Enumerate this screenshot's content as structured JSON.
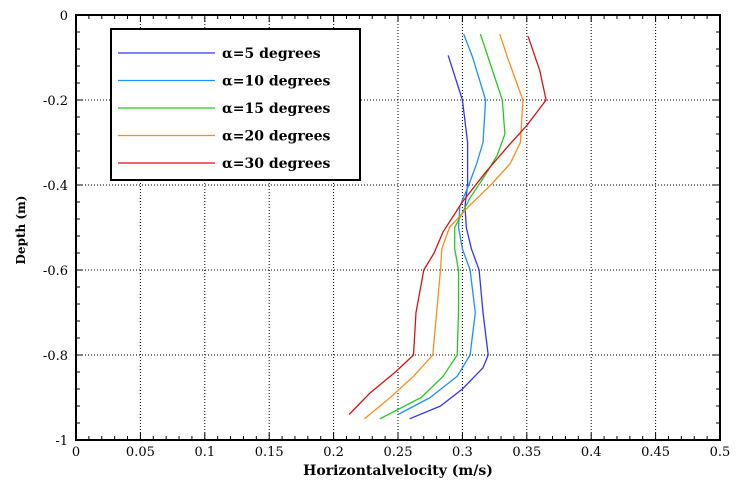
{
  "chart_data": {
    "type": "line",
    "title": "",
    "xlabel": "Horizontalvelocity (m/s)",
    "ylabel": "Depth (m)",
    "xlim": [
      0,
      0.5
    ],
    "ylim": [
      -1,
      0
    ],
    "xticks": [
      0,
      0.05,
      0.1,
      0.15,
      0.2,
      0.25,
      0.3,
      0.35,
      0.4,
      0.45,
      0.5
    ],
    "xtick_labels": [
      "0",
      "0.05",
      "0.1",
      "0.15",
      "0.2",
      "0.25",
      "0.3",
      "0.35",
      "0.4",
      "0.45",
      "0.5"
    ],
    "yticks": [
      0,
      -0.2,
      -0.4,
      -0.6,
      -0.8,
      -1
    ],
    "ytick_labels": [
      "0",
      "-0.2",
      "-0.4",
      "-0.6",
      "-0.8",
      "-1"
    ],
    "grid": true,
    "legend_position": "top-left",
    "series": [
      {
        "name": "α=5 degrees",
        "color": "#3333ff",
        "x": [
          0.289,
          0.3,
          0.304,
          0.304,
          0.302,
          0.303,
          0.307,
          0.313,
          0.316,
          0.32,
          0.316,
          0.3,
          0.283,
          0.259
        ],
        "y": [
          -0.095,
          -0.2,
          -0.3,
          -0.4,
          -0.45,
          -0.5,
          -0.55,
          -0.6,
          -0.7,
          -0.8,
          -0.83,
          -0.88,
          -0.92,
          -0.95
        ]
      },
      {
        "name": "α=10 degrees",
        "color": "#1e90ff",
        "x": [
          0.301,
          0.308,
          0.318,
          0.316,
          0.311,
          0.305,
          0.298,
          0.297,
          0.3,
          0.306,
          0.31,
          0.306,
          0.296,
          0.275,
          0.25
        ],
        "y": [
          -0.045,
          -0.1,
          -0.2,
          -0.3,
          -0.35,
          -0.4,
          -0.45,
          -0.5,
          -0.55,
          -0.6,
          -0.7,
          -0.8,
          -0.85,
          -0.9,
          -0.94
        ]
      },
      {
        "name": "α=15 degrees",
        "color": "#22cc22",
        "x": [
          0.314,
          0.32,
          0.331,
          0.333,
          0.327,
          0.317,
          0.306,
          0.294,
          0.294,
          0.297,
          0.297,
          0.296,
          0.285,
          0.268,
          0.236
        ],
        "y": [
          -0.045,
          -0.1,
          -0.2,
          -0.28,
          -0.33,
          -0.38,
          -0.43,
          -0.5,
          -0.55,
          -0.6,
          -0.7,
          -0.8,
          -0.85,
          -0.9,
          -0.95
        ]
      },
      {
        "name": "α=20 degrees",
        "color": "#ff8c1a",
        "x": [
          0.329,
          0.335,
          0.347,
          0.345,
          0.337,
          0.322,
          0.305,
          0.29,
          0.284,
          0.283,
          0.28,
          0.277,
          0.262,
          0.244,
          0.224
        ],
        "y": [
          -0.045,
          -0.1,
          -0.2,
          -0.3,
          -0.35,
          -0.4,
          -0.45,
          -0.5,
          -0.55,
          -0.6,
          -0.7,
          -0.8,
          -0.85,
          -0.9,
          -0.95
        ]
      },
      {
        "name": "α=30 degrees",
        "color": "#dd1111",
        "x": [
          0.351,
          0.36,
          0.365,
          0.35,
          0.335,
          0.318,
          0.3,
          0.285,
          0.278,
          0.27,
          0.264,
          0.262,
          0.248,
          0.228,
          0.212
        ],
        "y": [
          -0.05,
          -0.13,
          -0.2,
          -0.26,
          -0.31,
          -0.37,
          -0.44,
          -0.51,
          -0.56,
          -0.6,
          -0.7,
          -0.8,
          -0.84,
          -0.89,
          -0.94
        ]
      }
    ]
  }
}
